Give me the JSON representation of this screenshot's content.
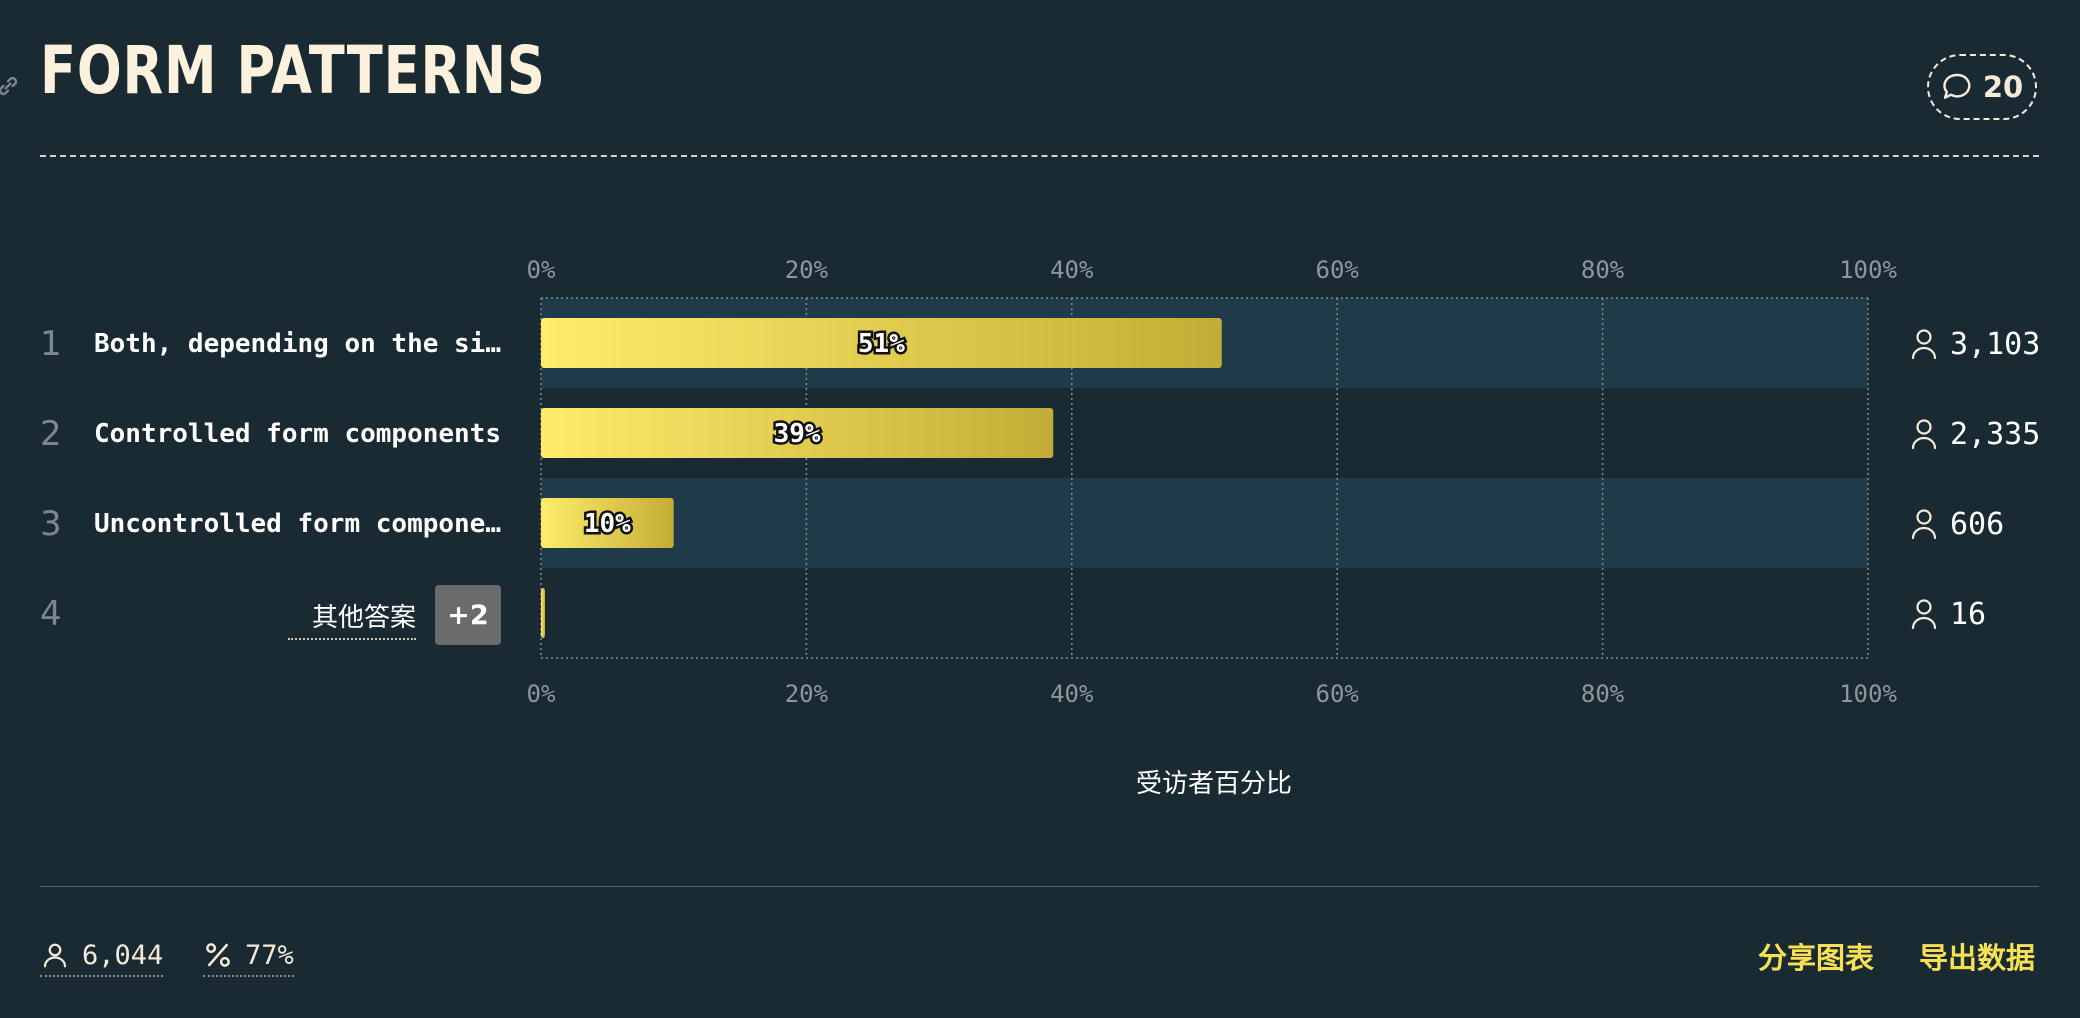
{
  "header": {
    "title": "FORM PATTERNS",
    "comment_count": "20"
  },
  "chart_data": {
    "type": "bar",
    "orientation": "horizontal",
    "title": "FORM PATTERNS",
    "xlabel": "受访者百分比",
    "ylabel": "",
    "xlim": [
      0,
      100
    ],
    "ticks": [
      "0%",
      "20%",
      "40%",
      "60%",
      "80%",
      "100%"
    ],
    "grid": true,
    "categories": [
      "Both, depending on the si…",
      "Controlled form components",
      "Uncontrolled form compone…",
      "其他答案"
    ],
    "ranks": [
      "1",
      "2",
      "3",
      "4"
    ],
    "values": [
      51.3,
      38.6,
      10.0,
      0.3
    ],
    "value_labels": [
      "51%",
      "39%",
      "10%",
      ""
    ],
    "counts": [
      "3,103",
      "2,335",
      "606",
      "16"
    ],
    "other_extra": "+2"
  },
  "footer": {
    "respondents": "6,044",
    "completion": "77%",
    "share_label": "分享图表",
    "export_label": "导出数据"
  },
  "colors": {
    "background": "#1a2a33",
    "row_band": "#1f3a48",
    "bar_start": "#ffec6a",
    "bar_end": "#c4ad36",
    "accent": "#f8e055"
  },
  "icons": [
    "link-icon",
    "comment-icon",
    "user-icon",
    "percent-icon"
  ]
}
